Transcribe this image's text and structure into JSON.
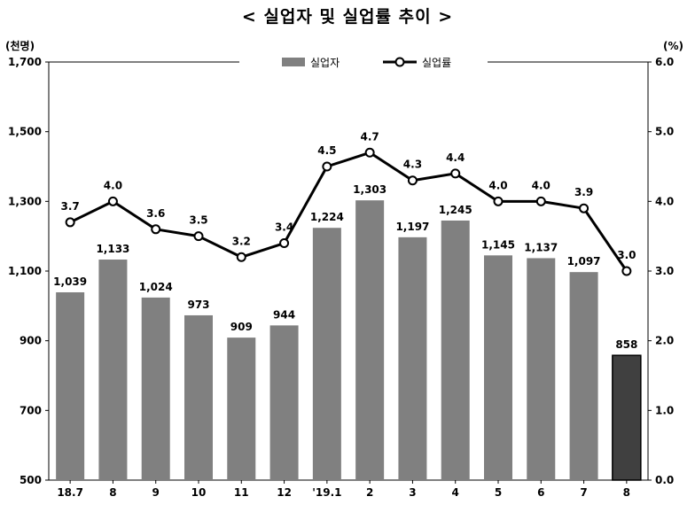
{
  "chart_data": {
    "type": "bar",
    "title": "< 실업자 및 실업률 추이 >",
    "left_unit": "(천명)",
    "right_unit": "(%)",
    "categories": [
      "18.7",
      "8",
      "9",
      "10",
      "11",
      "12",
      "'19.1",
      "2",
      "3",
      "4",
      "5",
      "6",
      "7",
      "8"
    ],
    "series": [
      {
        "name": "실업자",
        "type": "bar",
        "axis": "left",
        "values": [
          1039,
          1133,
          1024,
          973,
          909,
          944,
          1224,
          1303,
          1197,
          1245,
          1145,
          1137,
          1097,
          858
        ],
        "labels": [
          "1,039",
          "1,133",
          "1,024",
          "973",
          "909",
          "944",
          "1,224",
          "1,303",
          "1,197",
          "1,245",
          "1,145",
          "1,137",
          "1,097",
          "858"
        ],
        "color": "#808080",
        "highlight_color": "#404040",
        "highlight_index": 13
      },
      {
        "name": "실업률",
        "type": "line",
        "axis": "right",
        "values": [
          3.7,
          4.0,
          3.6,
          3.5,
          3.2,
          3.4,
          4.5,
          4.7,
          4.3,
          4.4,
          4.0,
          4.0,
          3.9,
          3.0
        ],
        "labels": [
          "3.7",
          "4.0",
          "3.6",
          "3.5",
          "3.2",
          "3.4",
          "4.5",
          "4.7",
          "4.3",
          "4.4",
          "4.0",
          "4.0",
          "3.9",
          "3.0"
        ],
        "color": "#000000"
      }
    ],
    "left_axis": {
      "ylim": [
        500,
        1700
      ],
      "ticks": [
        "500",
        "700",
        "900",
        "1,100",
        "1,300",
        "1,500",
        "1,700"
      ]
    },
    "right_axis": {
      "ylim": [
        0.0,
        6.0
      ],
      "ticks": [
        "0.0",
        "1.0",
        "2.0",
        "3.0",
        "4.0",
        "5.0",
        "6.0"
      ]
    },
    "legend_position": "top-center",
    "grid": false
  }
}
